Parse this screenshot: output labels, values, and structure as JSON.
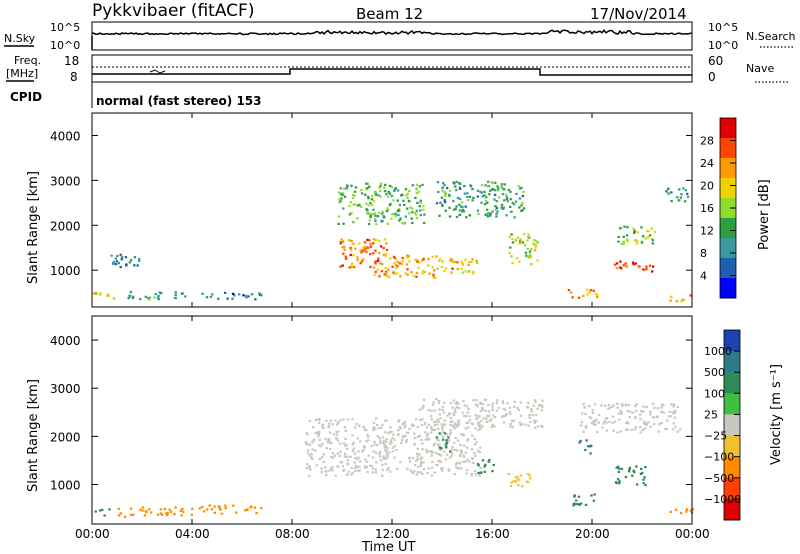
{
  "header": {
    "title": "Pykkvibaer (fitACF)",
    "beam": "Beam 12",
    "date": "17/Nov/2014"
  },
  "noise_panel": {
    "left_label": "N.Sky",
    "left_ticks": [
      "10^5",
      "10^0"
    ],
    "right_ticks": [
      "10^5",
      "10^0"
    ],
    "right_label": "N.Search"
  },
  "freq_panel": {
    "left_label_1": "Freq.",
    "left_label_2": "[MHz]",
    "left_ticks": [
      "18",
      "8"
    ],
    "right_ticks": [
      "60",
      "0"
    ],
    "right_label": "Nave"
  },
  "cpid": {
    "label": "CPID",
    "text": "normal (fast stereo) 153"
  },
  "x_axis": {
    "title": "Time UT",
    "ticks": [
      "00:00",
      "04:00",
      "08:00",
      "12:00",
      "16:00",
      "20:00",
      "00:00"
    ]
  },
  "power_panel": {
    "ylabel": "Slant Range [km]",
    "yticks": [
      "4000",
      "3000",
      "2000",
      "1000"
    ],
    "cbar_label": "Power [dB]",
    "cbar_ticks": [
      "28",
      "24",
      "20",
      "16",
      "12",
      "8",
      "4"
    ],
    "cbar_colors": [
      "#e00000",
      "#ff4500",
      "#ff9a00",
      "#f0d000",
      "#90dd30",
      "#2aa040",
      "#3a9aa0",
      "#2060b0",
      "#0000ff"
    ]
  },
  "velocity_panel": {
    "ylabel": "Slant Range [km]",
    "yticks": [
      "4000",
      "3000",
      "2000",
      "1000"
    ],
    "cbar_label": "Velocity [m s⁻¹]",
    "cbar_ticks": [
      "1000",
      "500",
      "100",
      "25",
      "−25",
      "−100",
      "−500",
      "−1000"
    ],
    "cbar_colors": [
      "#1c44b0",
      "#2f7a8a",
      "#2e8b57",
      "#3fbf3f",
      "#c8c8c0",
      "#f0c030",
      "#ff8c00",
      "#ff4000",
      "#e00000"
    ]
  },
  "chart_data": [
    {
      "type": "heatmap",
      "title": "Power",
      "xlabel": "Time UT",
      "ylabel": "Slant Range [km]",
      "xlim": [
        "00:00",
        "24:00"
      ],
      "ylim": [
        180,
        4500
      ],
      "colorbar": {
        "label": "Power [dB]",
        "range": [
          0,
          30
        ],
        "ticks": [
          4,
          8,
          12,
          16,
          20,
          24,
          28
        ]
      },
      "blobs": [
        {
          "t": 0.5,
          "r": 450,
          "dt": 1.2,
          "dr": 200,
          "p": 18
        },
        {
          "t": 2.5,
          "r": 450,
          "dt": 2.5,
          "dr": 180,
          "p": 10
        },
        {
          "t": 1.3,
          "r": 1200,
          "dt": 1.2,
          "dr": 350,
          "p": 6
        },
        {
          "t": 5.5,
          "r": 450,
          "dt": 2.5,
          "dr": 150,
          "p": 6
        },
        {
          "t": 10.8,
          "r": 1400,
          "dt": 2.0,
          "dr": 650,
          "p": 24
        },
        {
          "t": 12.5,
          "r": 1100,
          "dt": 2.5,
          "dr": 500,
          "p": 22
        },
        {
          "t": 14.5,
          "r": 1100,
          "dt": 1.8,
          "dr": 350,
          "p": 20
        },
        {
          "t": 11.5,
          "r": 2500,
          "dt": 3.5,
          "dr": 900,
          "p": 12
        },
        {
          "t": 15.5,
          "r": 2600,
          "dt": 3.5,
          "dr": 800,
          "p": 10
        },
        {
          "t": 17.2,
          "r": 1500,
          "dt": 1.2,
          "dr": 700,
          "p": 16
        },
        {
          "t": 19.6,
          "r": 500,
          "dt": 1.2,
          "dr": 200,
          "p": 22
        },
        {
          "t": 21.6,
          "r": 1100,
          "dt": 1.6,
          "dr": 250,
          "p": 28
        },
        {
          "t": 21.8,
          "r": 1800,
          "dt": 1.6,
          "dr": 400,
          "p": 14
        },
        {
          "t": 23.5,
          "r": 400,
          "dt": 1.0,
          "dr": 150,
          "p": 20
        },
        {
          "t": 23.3,
          "r": 2700,
          "dt": 1.0,
          "dr": 300,
          "p": 8
        }
      ]
    },
    {
      "type": "heatmap",
      "title": "Velocity",
      "xlabel": "Time UT",
      "ylabel": "Slant Range [km]",
      "xlim": [
        "00:00",
        "24:00"
      ],
      "ylim": [
        180,
        4500
      ],
      "colorbar": {
        "label": "Velocity [m s⁻¹]",
        "range": [
          -1000,
          1000
        ],
        "ticks": [
          1000,
          500,
          100,
          25,
          -25,
          -100,
          -500,
          -1000
        ]
      },
      "blobs": [
        {
          "t": 2.5,
          "r": 450,
          "dt": 3.0,
          "dr": 200,
          "v": -120
        },
        {
          "t": 5.5,
          "r": 500,
          "dt": 2.5,
          "dr": 180,
          "v": -150
        },
        {
          "t": 0.4,
          "r": 450,
          "dt": 0.6,
          "dr": 150,
          "v": 150
        },
        {
          "t": 12.0,
          "r": 1800,
          "dt": 7.0,
          "dr": 1200,
          "v": 0
        },
        {
          "t": 15.5,
          "r": 2500,
          "dt": 5.0,
          "dr": 600,
          "v": 0
        },
        {
          "t": 21.5,
          "r": 2400,
          "dt": 4.0,
          "dr": 600,
          "v": 0
        },
        {
          "t": 14.0,
          "r": 1900,
          "dt": 0.6,
          "dr": 400,
          "v": 200
        },
        {
          "t": 15.7,
          "r": 1400,
          "dt": 0.8,
          "dr": 300,
          "v": 400
        },
        {
          "t": 19.7,
          "r": 1800,
          "dt": 0.5,
          "dr": 300,
          "v": 800
        },
        {
          "t": 21.5,
          "r": 1200,
          "dt": 1.2,
          "dr": 400,
          "v": 300
        },
        {
          "t": 23.5,
          "r": 450,
          "dt": 1.0,
          "dr": 150,
          "v": -200
        },
        {
          "t": 19.6,
          "r": 700,
          "dt": 1.0,
          "dr": 250,
          "v": 150
        },
        {
          "t": 17.0,
          "r": 1100,
          "dt": 1.0,
          "dr": 300,
          "v": -80
        }
      ]
    }
  ]
}
